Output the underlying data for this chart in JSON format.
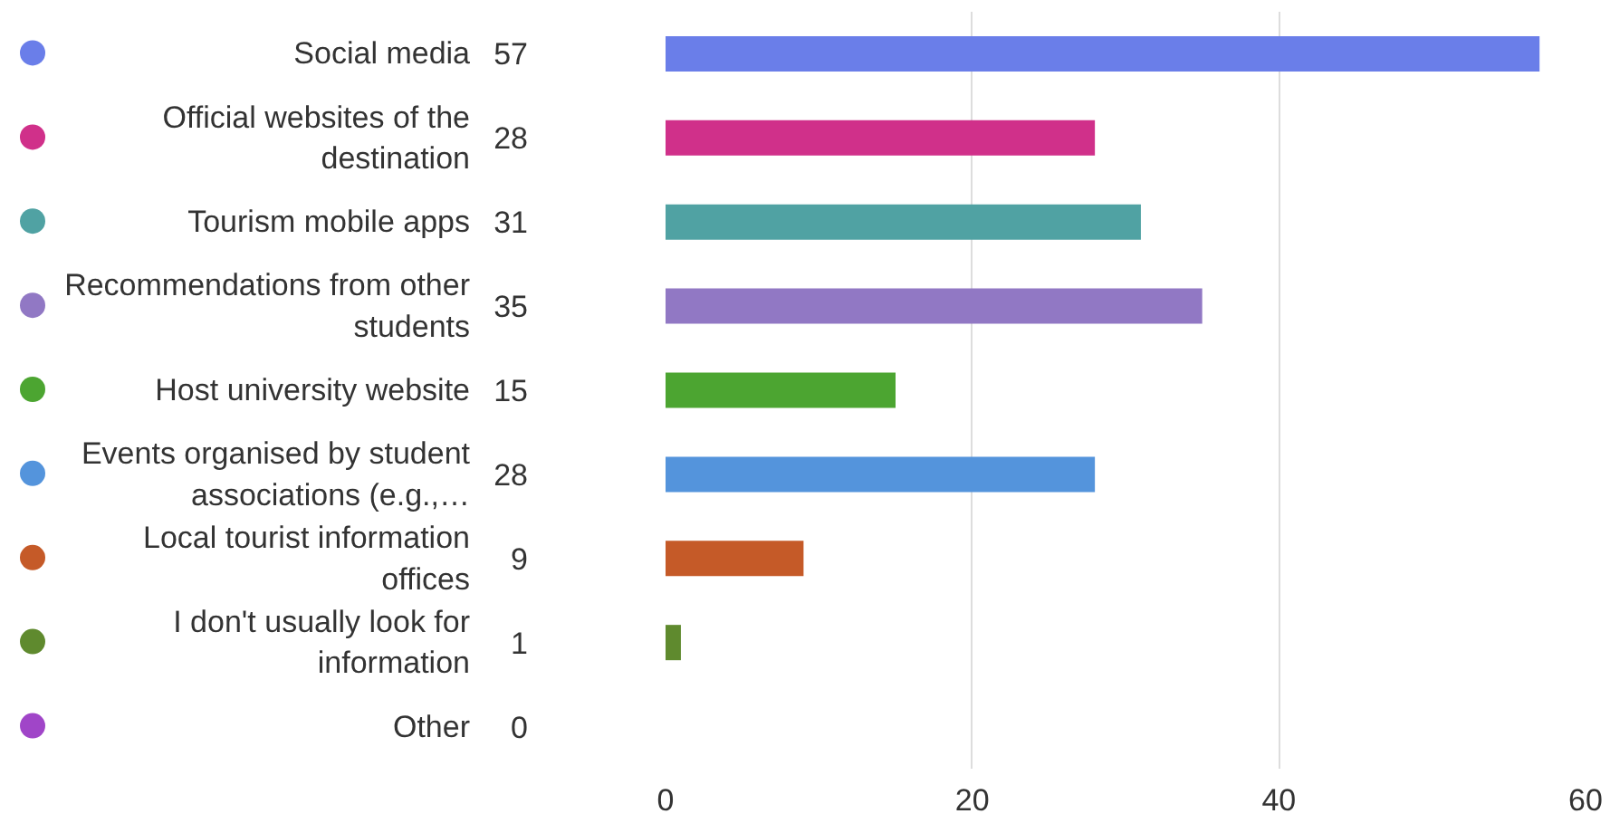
{
  "chart_data": {
    "type": "bar",
    "orientation": "horizontal",
    "categories": [
      "Social media",
      "Official websites of the destination",
      "Tourism mobile apps",
      "Recommendations from other students",
      "Host university website",
      "Events organised by student associations (e.g.,…",
      "Local tourist information offices",
      "I don't usually look for information",
      "Other"
    ],
    "values": [
      57,
      28,
      31,
      35,
      15,
      28,
      9,
      1,
      0
    ],
    "colors": [
      "#6a7ee9",
      "#d0308a",
      "#50a2a3",
      "#9178c4",
      "#4ca531",
      "#5494dc",
      "#c55a28",
      "#5f8a2e",
      "#a045c8"
    ],
    "xlim": [
      0,
      60
    ],
    "xticks": [
      0,
      20,
      40,
      60
    ],
    "grid": "x",
    "data_labels": true
  }
}
